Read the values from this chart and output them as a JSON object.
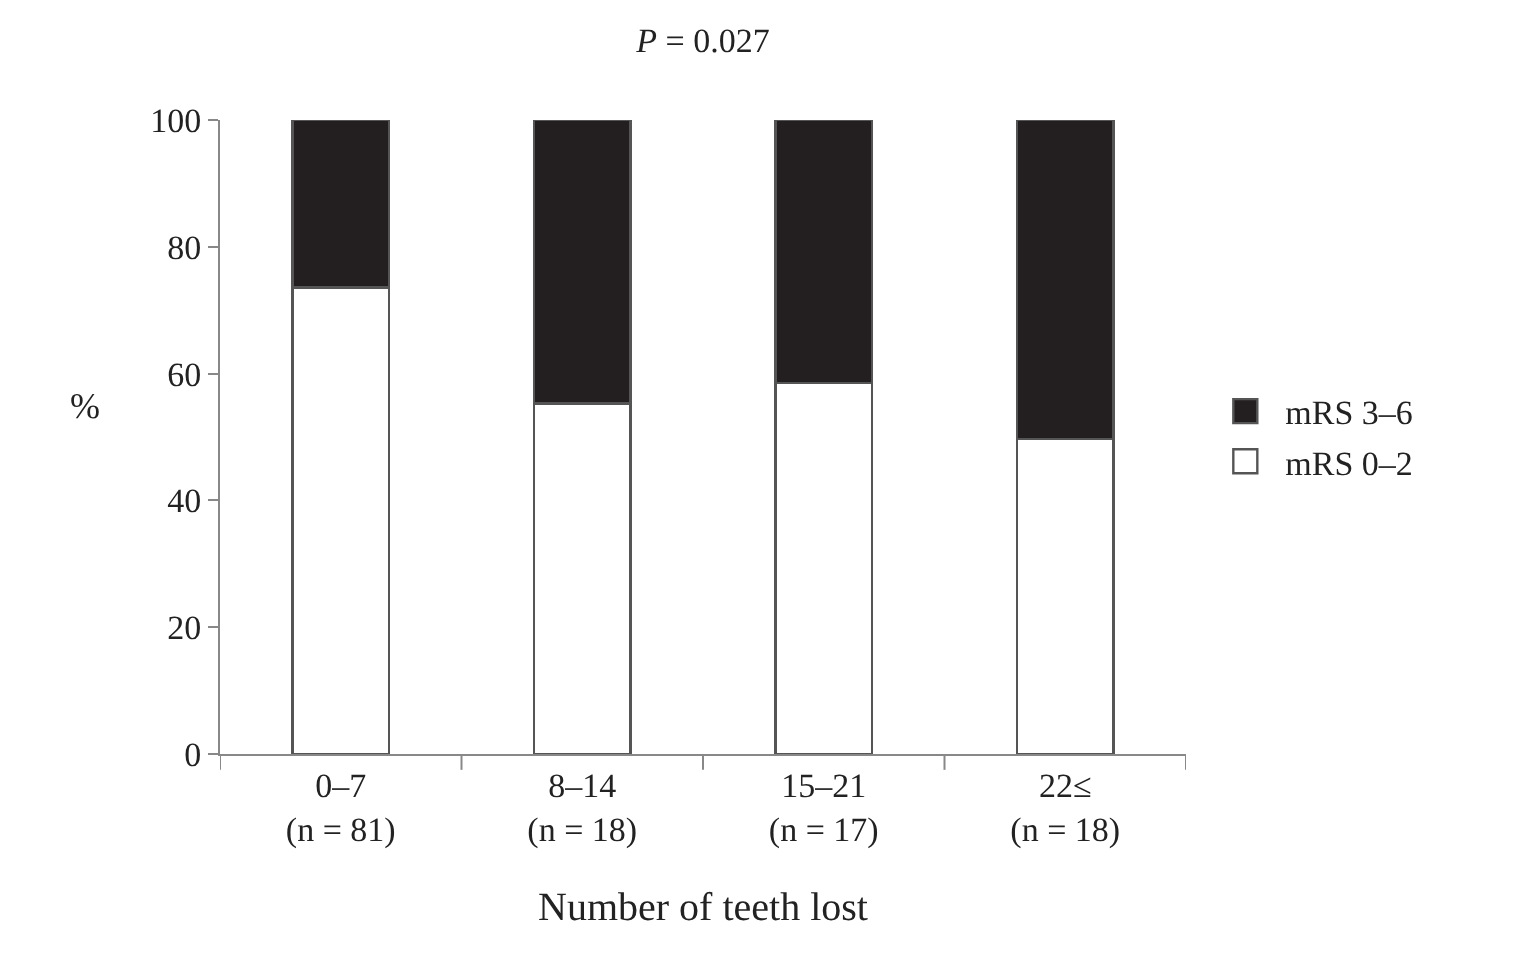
{
  "chart_data": {
    "type": "bar",
    "title": "P = 0.027",
    "xlabel": "Number of teeth lost",
    "ylabel": "%",
    "categories": [
      "0–7\n(n = 81)",
      "8–14\n(n = 18)",
      "15–21\n(n = 17)",
      "22≤\n(n = 18)"
    ],
    "stacked": true,
    "series": [
      {
        "name": "mRS 0–2",
        "color": "#ffffff",
        "values": [
          73.6,
          55.3,
          58.5,
          49.7
        ]
      },
      {
        "name": "mRS 3–6",
        "color": "#231f20",
        "values": [
          26.4,
          44.7,
          41.5,
          50.3
        ]
      }
    ],
    "ylim": [
      0,
      100
    ],
    "yticks": [
      0,
      20,
      40,
      60,
      80,
      100
    ],
    "legend": "right"
  }
}
